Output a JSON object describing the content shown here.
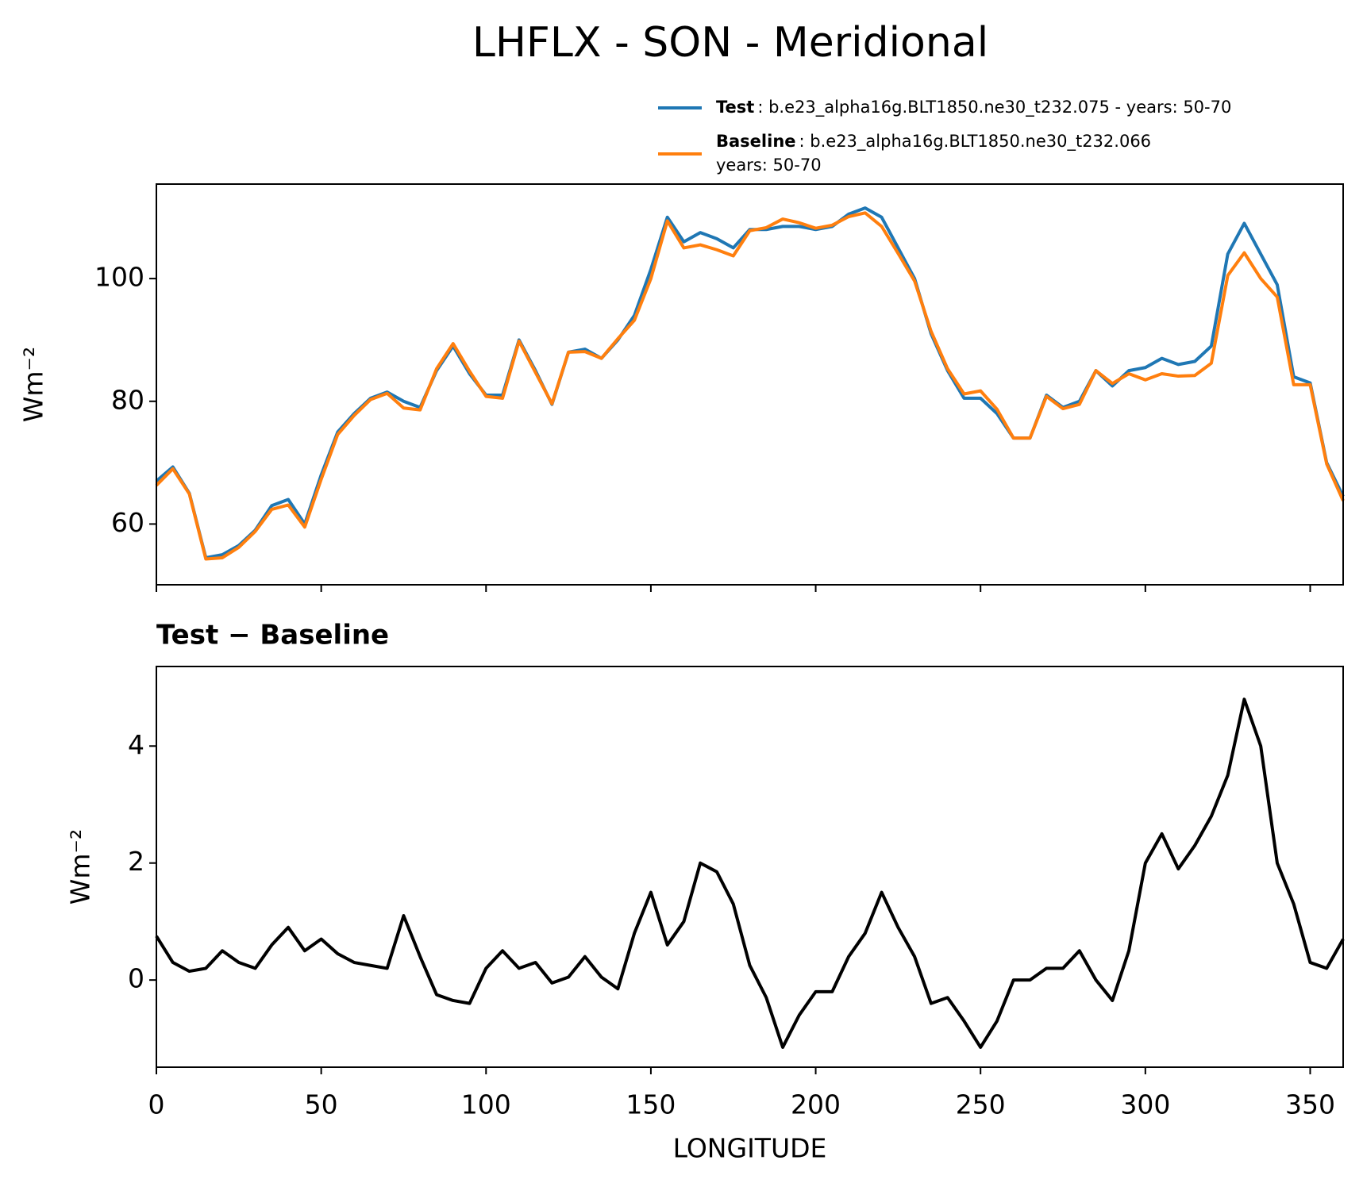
{
  "chart_data": [
    {
      "type": "line",
      "title": "LHFLX - SON - Meridional",
      "ylabel": "Wm⁻²",
      "xlim": [
        0,
        360
      ],
      "ylim": [
        50.1,
        115.4
      ],
      "yticks": [
        60,
        80,
        100
      ],
      "xticks": [
        0,
        50,
        100,
        150,
        200,
        250,
        300,
        350
      ],
      "xticklabels": false,
      "x": [
        0,
        5,
        10,
        15,
        20,
        25,
        30,
        35,
        40,
        45,
        50,
        55,
        60,
        65,
        70,
        75,
        80,
        85,
        90,
        95,
        100,
        105,
        110,
        115,
        120,
        125,
        130,
        135,
        140,
        145,
        150,
        155,
        160,
        165,
        170,
        175,
        180,
        185,
        190,
        195,
        200,
        205,
        210,
        215,
        220,
        225,
        230,
        235,
        240,
        245,
        250,
        255,
        260,
        265,
        270,
        275,
        280,
        285,
        290,
        295,
        300,
        305,
        310,
        315,
        320,
        325,
        330,
        335,
        340,
        345,
        350,
        355,
        360
      ],
      "series": [
        {
          "name": "Test",
          "description": [
            ": b.e23_alpha16g.BLT1850.ne30_t232.075 - years: 50-70"
          ],
          "color": "#1f77b4",
          "values": [
            67,
            69.3,
            65,
            54.5,
            55,
            56.5,
            59,
            63,
            64,
            60,
            68,
            75,
            78,
            80.5,
            81.5,
            80,
            79,
            85,
            89,
            84.5,
            81,
            81,
            90,
            85,
            79.5,
            88,
            88.5,
            87,
            90,
            94,
            101.5,
            110,
            106,
            107.5,
            106.5,
            105,
            108,
            108,
            108.5,
            108.5,
            108,
            108.5,
            110.5,
            111.5,
            110,
            105,
            100,
            91,
            85,
            80.5,
            80.5,
            78,
            74,
            74,
            81,
            79,
            80,
            85,
            82.5,
            85,
            85.5,
            87,
            86,
            86.5,
            89,
            104,
            109,
            104,
            99,
            84,
            83,
            70,
            64.5
          ]
        },
        {
          "name": "Baseline",
          "description": [
            ": b.e23_alpha16g.BLT1850.ne30_t232.066",
            "years: 50-70"
          ],
          "color": "#ff7f0e",
          "values": [
            66.3,
            69.0,
            64.9,
            54.3,
            54.5,
            56.2,
            58.8,
            62.4,
            63.1,
            59.5,
            67.3,
            74.6,
            77.7,
            80.3,
            81.3,
            78.9,
            78.6,
            85.3,
            89.4,
            84.9,
            80.8,
            80.5,
            89.8,
            84.7,
            79.6,
            88.0,
            88.1,
            87.0,
            90.2,
            93.2,
            100.0,
            109.4,
            105.0,
            105.5,
            104.7,
            103.7,
            107.8,
            108.3,
            109.7,
            109.1,
            108.2,
            108.7,
            110.1,
            110.7,
            108.5,
            104.1,
            99.6,
            91.4,
            85.3,
            81.2,
            81.7,
            78.7,
            74.0,
            74.0,
            80.8,
            78.8,
            79.5,
            85.0,
            82.9,
            84.5,
            83.5,
            84.5,
            84.1,
            84.2,
            86.2,
            100.5,
            104.2,
            100.0,
            97.0,
            82.7,
            82.7,
            69.8,
            63.8
          ]
        }
      ]
    },
    {
      "type": "line",
      "subtitle": "Test − Baseline",
      "ylabel": "Wm⁻²",
      "xlabel": "LONGITUDE",
      "xlim": [
        0,
        360
      ],
      "ylim": [
        -1.49,
        5.36
      ],
      "yticks": [
        0,
        2,
        4
      ],
      "xticks": [
        0,
        50,
        100,
        150,
        200,
        250,
        300,
        350
      ],
      "xticklabels": true,
      "x": [
        0,
        5,
        10,
        15,
        20,
        25,
        30,
        35,
        40,
        45,
        50,
        55,
        60,
        65,
        70,
        75,
        80,
        85,
        90,
        95,
        100,
        105,
        110,
        115,
        120,
        125,
        130,
        135,
        140,
        145,
        150,
        155,
        160,
        165,
        170,
        175,
        180,
        185,
        190,
        195,
        200,
        205,
        210,
        215,
        220,
        225,
        230,
        235,
        240,
        245,
        250,
        255,
        260,
        265,
        270,
        275,
        280,
        285,
        290,
        295,
        300,
        305,
        310,
        315,
        320,
        325,
        330,
        335,
        340,
        345,
        350,
        355,
        360
      ],
      "series": [
        {
          "color": "#000000",
          "values": [
            0.75,
            0.3,
            0.15,
            0.2,
            0.5,
            0.3,
            0.2,
            0.6,
            0.9,
            0.5,
            0.7,
            0.45,
            0.3,
            0.25,
            0.2,
            1.1,
            0.4,
            -0.25,
            -0.35,
            -0.4,
            0.2,
            0.5,
            0.2,
            0.3,
            -0.05,
            0.05,
            0.4,
            0.05,
            -0.15,
            0.8,
            1.5,
            0.6,
            1.0,
            2.0,
            1.85,
            1.3,
            0.25,
            -0.3,
            -1.15,
            -0.6,
            -0.2,
            -0.2,
            0.4,
            0.8,
            1.5,
            0.9,
            0.4,
            -0.4,
            -0.3,
            -0.7,
            -1.15,
            -0.7,
            0.0,
            0.0,
            0.2,
            0.2,
            0.5,
            0.0,
            -0.35,
            0.5,
            2.0,
            2.5,
            1.9,
            2.3,
            2.8,
            3.5,
            4.8,
            4.0,
            2.0,
            1.3,
            0.3,
            0.2,
            0.7
          ]
        }
      ]
    }
  ]
}
